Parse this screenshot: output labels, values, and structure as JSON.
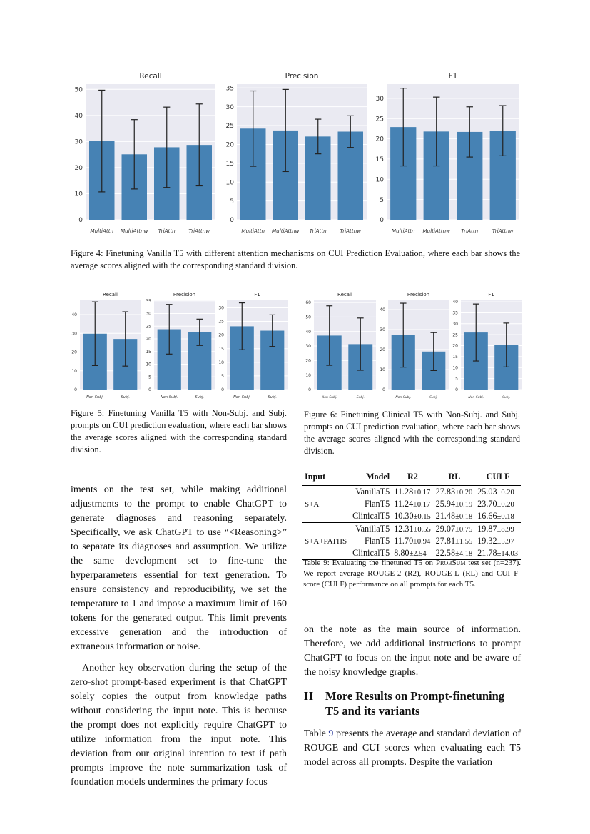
{
  "figure4": {
    "caption": "Figure 4: Finetuning Vanilla T5 with different attention mechanisms on CUI Prediction Evaluation, where each bar shows the average scores aligned with the corresponding standard division."
  },
  "figure5": {
    "caption": "Figure 5: Finetuning Vanilla T5 with Non-Subj. and Subj. prompts on CUI prediction evaluation, where each bar shows the average scores aligned with the corresponding standard division."
  },
  "figure6": {
    "caption": "Figure 6: Finetuning Clinical T5 with Non-Subj. and Subj. prompts on CUI prediction evaluation, where each bar shows the average scores aligned with the corresponding standard division."
  },
  "chart_data": [
    {
      "id": "f4_recall",
      "type": "bar",
      "title": "Recall",
      "categories": [
        "MultiAttn",
        "MultiAttnw",
        "TriAttn",
        "TriAttnw"
      ],
      "values": [
        30.2,
        25.1,
        27.8,
        28.7
      ],
      "error": [
        19.5,
        13.3,
        15.4,
        15.7
      ],
      "ylim": [
        0,
        52
      ],
      "yticks": [
        0,
        10,
        20,
        30,
        40,
        50
      ],
      "grid": true
    },
    {
      "id": "f4_precision",
      "type": "bar",
      "title": "Precision",
      "categories": [
        "MultiAttn",
        "MultiAttnw",
        "TriAttn",
        "TriAttnw"
      ],
      "values": [
        24.2,
        23.7,
        22.1,
        23.4
      ],
      "error": [
        10.0,
        10.9,
        4.6,
        4.2
      ],
      "ylim": [
        0,
        36
      ],
      "yticks": [
        0,
        5,
        10,
        15,
        20,
        25,
        30,
        35
      ],
      "grid": true
    },
    {
      "id": "f4_f1",
      "type": "bar",
      "title": "F1",
      "categories": [
        "MultiAttn",
        "MultiAttnw",
        "TriAttn",
        "TriAttnw"
      ],
      "values": [
        22.9,
        21.8,
        21.7,
        22.0
      ],
      "error": [
        9.6,
        8.5,
        6.2,
        6.2
      ],
      "ylim": [
        0,
        33.5
      ],
      "yticks": [
        0,
        5,
        10,
        15,
        20,
        25,
        30
      ],
      "grid": true
    },
    {
      "id": "f5_recall",
      "type": "bar",
      "title": "Recall",
      "categories": [
        "Non-Subj.",
        "Subj."
      ],
      "values": [
        29.8,
        27.0
      ],
      "error": [
        17.0,
        14.5
      ],
      "ylim": [
        0,
        48
      ],
      "yticks": [
        0,
        10,
        20,
        30,
        40
      ],
      "grid": true
    },
    {
      "id": "f5_precision",
      "type": "bar",
      "title": "Precision",
      "categories": [
        "Non-Subj.",
        "Subj."
      ],
      "values": [
        23.8,
        22.6
      ],
      "error": [
        9.8,
        5.2
      ],
      "ylim": [
        0,
        35.5
      ],
      "yticks": [
        0,
        5,
        10,
        15,
        20,
        25,
        30,
        35
      ],
      "grid": true
    },
    {
      "id": "f5_f1",
      "type": "bar",
      "title": "F1",
      "categories": [
        "Non-Subj.",
        "Subj."
      ],
      "values": [
        23.2,
        21.6
      ],
      "error": [
        8.6,
        5.8
      ],
      "ylim": [
        0,
        33
      ],
      "yticks": [
        0,
        5,
        10,
        15,
        20,
        25,
        30
      ],
      "grid": true
    },
    {
      "id": "f6_recall",
      "type": "bar",
      "title": "Recall",
      "categories": [
        "Non-Subj.",
        "Subj."
      ],
      "values": [
        37.2,
        31.3
      ],
      "error": [
        20.5,
        18.0
      ],
      "ylim": [
        0,
        62
      ],
      "yticks": [
        0,
        10,
        20,
        30,
        40,
        50,
        60
      ],
      "grid": true
    },
    {
      "id": "f6_precision",
      "type": "bar",
      "title": "Precision",
      "categories": [
        "Non-Subj.",
        "Subj."
      ],
      "values": [
        27.2,
        19.0
      ],
      "error": [
        16.0,
        9.5
      ],
      "ylim": [
        0,
        45
      ],
      "yticks": [
        0,
        10,
        20,
        30,
        40
      ],
      "grid": true
    },
    {
      "id": "f6_f1",
      "type": "bar",
      "title": "F1",
      "categories": [
        "Non-Subj.",
        "Subj."
      ],
      "values": [
        26.0,
        20.3
      ],
      "error": [
        13.0,
        10.0
      ],
      "ylim": [
        0,
        41
      ],
      "yticks": [
        0,
        5,
        10,
        15,
        20,
        25,
        30,
        35,
        40
      ],
      "grid": true
    }
  ],
  "left_column": {
    "para1": "iments on the test set, while making additional adjustments to the prompt to enable ChatGPT to generate diagnoses and reasoning separately. Specifically, we ask ChatGPT to use “<Reasoning>” to separate its diagnoses and assumption. We utilize the same development set to fine-tune the hyperparameters essential for text generation. To ensure consistency and reproducibility, we set the temperature to 1 and impose a maximum limit of 160 tokens for the generated output. This limit prevents excessive generation and the introduction of extraneous information or noise.",
    "para2": "Another key observation during the setup of the zero-shot prompt-based experiment is that ChatGPT solely copies the output from knowledge paths without considering the input note. This is because the prompt does not explicitly require ChatGPT to utilize information from the input note. This deviation from our original intention to test if path prompts improve the note summarization task of foundation models undermines the primary focus"
  },
  "table9": {
    "headers": [
      "Input",
      "Model",
      "R2",
      "RL",
      "CUI F"
    ],
    "groups": [
      {
        "input": "S+A",
        "rows": [
          {
            "model": "VanillaT5",
            "r2": "11.28",
            "r2_sd": "±0.17",
            "rl": "27.83",
            "rl_sd": "±0.20",
            "cui": "25.03",
            "cui_sd": "±0.20"
          },
          {
            "model": "FlanT5",
            "r2": "11.24",
            "r2_sd": "±0.17",
            "rl": "25.94",
            "rl_sd": "±0.19",
            "cui": "23.70",
            "cui_sd": "±0.20"
          },
          {
            "model": "ClinicalT5",
            "r2": "10.30",
            "r2_sd": "±0.15",
            "rl": "21.48",
            "rl_sd": "±0.18",
            "cui": "16.66",
            "cui_sd": "±0.18"
          }
        ]
      },
      {
        "input": "S+A+PATHS",
        "rows": [
          {
            "model": "VanillaT5",
            "r2": "12.31",
            "r2_sd": "±0.55",
            "rl": "29.07",
            "rl_sd": "±0.75",
            "cui": "19.87",
            "cui_sd": "±8.99"
          },
          {
            "model": "FlanT5",
            "r2": "11.70",
            "r2_sd": "±0.94",
            "rl": "27.81",
            "rl_sd": "±1.55",
            "cui": "19.32",
            "cui_sd": "±5.97"
          },
          {
            "model": "ClinicalT5",
            "r2": "8.80",
            "r2_sd": "±2.54",
            "rl": "22.58",
            "rl_sd": "±4.18",
            "cui": "21.78",
            "cui_sd": "±14.03"
          }
        ]
      }
    ],
    "caption_pre": "Table 9: Evaluating the finetuned T5 on ",
    "caption_sc": "ProbSum",
    "caption_post": " test set (n=237). We report average ROUGE-2 (R2), ROUGE-L (RL) and CUI F-score (CUI F) performance on all prompts for each T5."
  },
  "right_column": {
    "para1": "on the note as the main source of information. Therefore, we add additional instructions to prompt ChatGPT to focus on the input note and be aware of the noisy knowledge graphs.",
    "section_num": "H",
    "section_title": "More Results on Prompt-finetuning T5 and its variants",
    "para2_pre": "Table ",
    "para2_ref": "9",
    "para2_post": " presents the average and standard deviation of ROUGE and CUI scores when evaluating each T5 model across all prompts. Despite the variation"
  }
}
